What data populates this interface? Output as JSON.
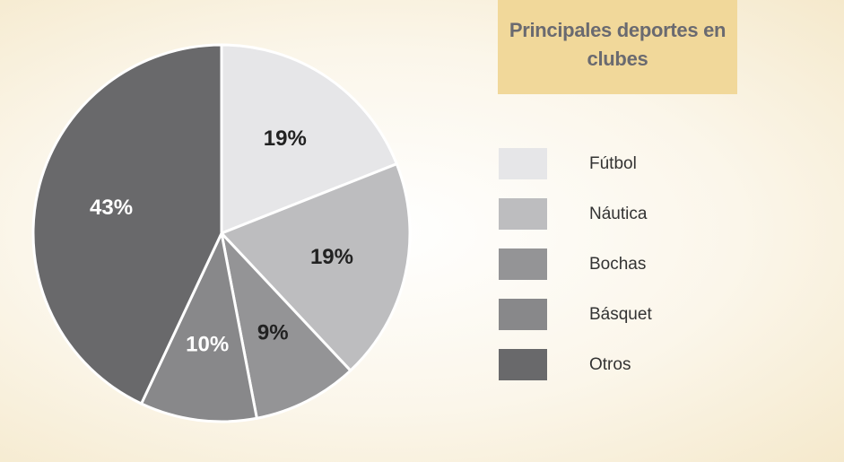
{
  "chart_data": {
    "type": "pie",
    "title": "Principales deportes en clubes",
    "categories": [
      "Fútbol",
      "Náutica",
      "Bochas",
      "Básquet",
      "Otros"
    ],
    "values": [
      19,
      19,
      9,
      10,
      43
    ],
    "value_labels": [
      "19%",
      "19%",
      "9%",
      "10%",
      "43%"
    ],
    "colors": [
      "#e6e6e8",
      "#bdbdbf",
      "#949496",
      "#88888a",
      "#69696b"
    ],
    "legend": "right"
  }
}
